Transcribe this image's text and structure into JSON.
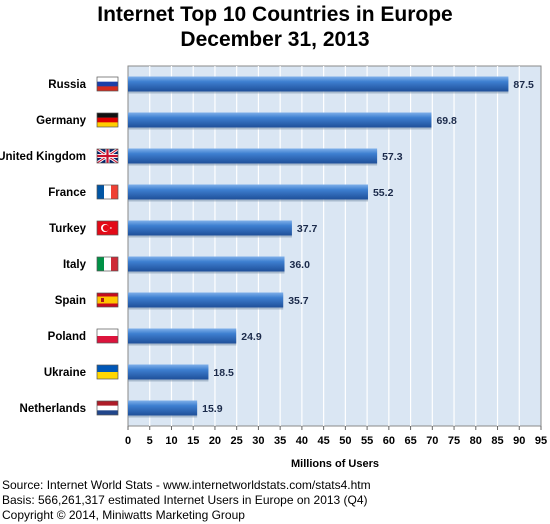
{
  "chart_data": {
    "type": "bar",
    "orientation": "horizontal",
    "title": "Internet Top 10 Countries in Europe",
    "subtitle": "December 31, 2013",
    "categories": [
      "Russia",
      "Germany",
      "United Kingdom",
      "France",
      "Turkey",
      "Italy",
      "Spain",
      "Poland",
      "Ukraine",
      "Netherlands"
    ],
    "values": [
      87.5,
      69.8,
      57.3,
      55.2,
      37.7,
      36.0,
      35.7,
      24.9,
      18.5,
      15.9
    ],
    "data_labels": [
      "87.5",
      "69.8",
      "57.3",
      "55.2",
      "37.7",
      "36.0",
      "35.7",
      "24.9",
      "18.5",
      "15.9"
    ],
    "xlabel": "Millions of Users",
    "ylabel": "",
    "xlim": [
      0,
      95
    ],
    "x_ticks": [
      "0",
      "5",
      "10",
      "15",
      "20",
      "25",
      "30",
      "35",
      "40",
      "45",
      "50",
      "55",
      "60",
      "65",
      "70",
      "75",
      "80",
      "85",
      "90",
      "95"
    ],
    "grid": "vertical",
    "bar_color": "#2f6fc4",
    "plot_background": "#dae6f3",
    "flags": [
      "russia-flag-icon",
      "germany-flag-icon",
      "uk-flag-icon",
      "france-flag-icon",
      "turkey-flag-icon",
      "italy-flag-icon",
      "spain-flag-icon",
      "poland-flag-icon",
      "ukraine-flag-icon",
      "netherlands-flag-icon"
    ]
  },
  "footer": {
    "source": "Source: Internet World Stats  -  www.internetworldstats.com/stats4.htm",
    "basis": "Basis: 566,261,317 estimated Internet  Users in Europe on 2013 (Q4)",
    "copyright": "Copyright © 2014, Miniwatts Marketing Group"
  }
}
